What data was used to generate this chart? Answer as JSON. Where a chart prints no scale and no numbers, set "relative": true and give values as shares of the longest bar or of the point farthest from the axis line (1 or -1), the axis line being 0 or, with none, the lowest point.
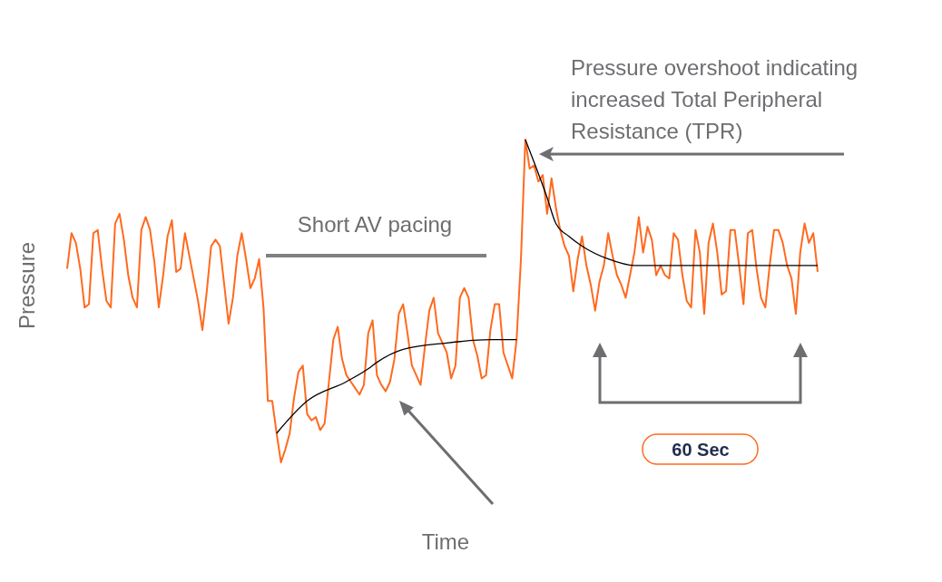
{
  "chart_data": {
    "type": "line",
    "relative": true,
    "xlabel": "Time",
    "ylabel": "Pressure",
    "grid": false,
    "marker": "none",
    "line_style": "solid",
    "annotations": [
      "Pressure overshoot indicating increased Total Peripheral Resistance (TPR)",
      "Short AV pacing",
      "60 Sec"
    ],
    "categories": [
      null,
      null,
      null,
      null,
      null,
      null,
      null,
      null,
      null,
      null,
      null,
      null,
      null,
      null,
      null,
      null,
      null,
      null,
      null,
      null,
      null,
      null,
      null,
      null,
      null,
      null,
      null,
      null,
      null,
      null,
      null,
      null,
      null,
      null,
      null,
      null,
      null,
      null,
      null,
      null,
      null,
      null,
      null,
      null,
      null,
      null,
      null,
      null,
      null,
      null,
      null,
      null,
      null,
      null,
      null,
      null,
      null,
      null,
      null,
      null,
      null,
      null,
      null,
      null,
      null,
      null,
      null,
      null,
      null,
      null,
      null,
      null,
      null,
      null,
      null,
      null,
      null,
      null,
      null,
      null,
      null,
      null,
      null,
      null,
      null,
      null,
      null,
      null,
      null,
      null,
      null,
      null,
      null,
      null,
      null,
      null,
      null,
      null,
      null,
      null,
      null,
      null,
      null,
      null,
      null,
      null,
      null,
      null,
      null,
      null,
      null,
      null,
      null,
      null,
      null,
      null,
      null,
      null,
      null,
      null,
      null,
      null,
      null,
      null,
      null,
      null,
      null,
      null,
      null,
      null,
      null,
      null,
      null,
      null,
      null,
      null,
      null,
      null,
      null,
      null,
      null,
      null,
      null,
      null,
      null,
      null,
      null,
      null,
      null,
      null,
      null,
      null,
      null,
      null,
      null,
      null,
      null,
      null,
      null,
      null,
      null,
      null,
      null,
      null,
      null,
      null,
      null,
      null,
      null,
      null,
      null,
      null,
      null
    ],
    "series": [
      {
        "color": "#ff6a1f",
        "values": [
          0.6,
          0.71,
          0.68,
          0.6,
          0.48,
          0.49,
          0.71,
          0.72,
          0.6,
          0.5,
          0.48,
          0.74,
          0.77,
          0.69,
          0.58,
          0.51,
          0.48,
          0.72,
          0.76,
          0.72,
          0.62,
          0.48,
          0.58,
          0.7,
          0.75,
          0.59,
          0.6,
          0.71,
          0.64,
          0.57,
          0.5,
          0.41,
          0.53,
          0.67,
          0.69,
          0.67,
          0.55,
          0.43,
          0.51,
          0.64,
          0.71,
          0.63,
          0.54,
          0.57,
          0.63,
          0.48,
          0.19,
          0.19,
          0.09,
          0,
          0.04,
          0.09,
          0.2,
          0.28,
          0.3,
          0.15,
          0.13,
          0.14,
          0.1,
          0.12,
          0.25,
          0.38,
          0.42,
          0.32,
          0.27,
          0.25,
          0.23,
          0.21,
          0.24,
          0.4,
          0.44,
          0.27,
          0.24,
          0.22,
          0.25,
          0.32,
          0.46,
          0.49,
          0.4,
          0.3,
          0.27,
          0.24,
          0.36,
          0.47,
          0.51,
          0.4,
          0.37,
          0.34,
          0.26,
          0.3,
          0.51,
          0.54,
          0.51,
          0.38,
          0.33,
          0.26,
          0.27,
          0.41,
          0.49,
          0.49,
          0.34,
          0.3,
          0.26,
          0.38,
          0.63,
          1,
          0.91,
          0.92,
          0.87,
          0.89,
          0.77,
          0.88,
          0.79,
          0.72,
          0.67,
          0.64,
          0.53,
          0.63,
          0.7,
          0.61,
          0.55,
          0.47,
          0.56,
          0.61,
          0.71,
          0.64,
          0.58,
          0.55,
          0.51,
          0.58,
          0.65,
          0.76,
          0.65,
          0.73,
          0.69,
          0.58,
          0.61,
          0.58,
          0.57,
          0.71,
          0.69,
          0.58,
          0.5,
          0.48,
          0.72,
          0.65,
          0.46,
          0.68,
          0.74,
          0.65,
          0.52,
          0.53,
          0.72,
          0.72,
          0.61,
          0.49,
          0.71,
          0.72,
          0.6,
          0.51,
          0.48,
          0.61,
          0.72,
          0.72,
          0.68,
          0.61,
          0.57,
          0.46,
          0.65,
          0.74,
          0.68,
          0.71,
          0.59
        ]
      },
      {
        "color": "#000000",
        "values": [
          null,
          null,
          null,
          null,
          null,
          null,
          null,
          null,
          null,
          null,
          null,
          null,
          null,
          null,
          null,
          null,
          null,
          null,
          null,
          null,
          null,
          null,
          null,
          null,
          null,
          null,
          null,
          null,
          null,
          null,
          null,
          null,
          null,
          null,
          null,
          null,
          null,
          null,
          null,
          null,
          null,
          null,
          null,
          null,
          null,
          null,
          null,
          null,
          0.09,
          null,
          null,
          null,
          null,
          null,
          null,
          0.19,
          null,
          null,
          null,
          null,
          null,
          null,
          null,
          null,
          0.25,
          null,
          null,
          null,
          null,
          0.29,
          null,
          0.31,
          null,
          null,
          null,
          null,
          null,
          0.35,
          null,
          null,
          null,
          null,
          null,
          null,
          null,
          null,
          null,
          0.37,
          null,
          null,
          null,
          null,
          null,
          null,
          null,
          null,
          null,
          0.38,
          null,
          null,
          null,
          null,
          null,
          0.38,
          null,
          null,
          null,
          null,
          null,
          null,
          null,
          null,
          null,
          null,
          null,
          null,
          null,
          null,
          null,
          null,
          null,
          null,
          null,
          null,
          null,
          null,
          null,
          null,
          null,
          null,
          null,
          null,
          null,
          null,
          null,
          null,
          null,
          null,
          null,
          null,
          null,
          null,
          null,
          null,
          null,
          null,
          null,
          null,
          null,
          null,
          null,
          null,
          null,
          null,
          null,
          null,
          null,
          null,
          null,
          null,
          null,
          null,
          null,
          null,
          null,
          null,
          null,
          null,
          null,
          null,
          null,
          null,
          null
        ]
      },
      {
        "color": "#000000",
        "values": [
          null,
          null,
          null,
          null,
          null,
          null,
          null,
          null,
          null,
          null,
          null,
          null,
          null,
          null,
          null,
          null,
          null,
          null,
          null,
          null,
          null,
          null,
          null,
          null,
          null,
          null,
          null,
          null,
          null,
          null,
          null,
          null,
          null,
          null,
          null,
          null,
          null,
          null,
          null,
          null,
          null,
          null,
          null,
          null,
          null,
          null,
          null,
          null,
          null,
          null,
          null,
          null,
          null,
          null,
          null,
          null,
          null,
          null,
          null,
          null,
          null,
          null,
          null,
          null,
          null,
          null,
          null,
          null,
          null,
          null,
          null,
          null,
          null,
          null,
          null,
          null,
          null,
          null,
          null,
          null,
          null,
          null,
          null,
          null,
          null,
          null,
          null,
          null,
          null,
          null,
          null,
          null,
          null,
          null,
          null,
          null,
          null,
          null,
          null,
          null,
          null,
          null,
          null,
          null,
          null,
          1,
          null,
          null,
          null,
          null,
          0.82,
          null,
          0.74,
          null,
          null,
          0.7,
          null,
          null,
          0.67,
          null,
          null,
          null,
          null,
          null,
          0.63,
          null,
          null,
          null,
          null,
          null,
          0.61,
          null,
          null,
          null,
          null,
          null,
          null,
          null,
          null,
          null,
          null,
          null,
          null,
          null,
          null,
          null,
          null,
          null,
          null,
          null,
          null,
          null,
          null,
          null,
          null,
          null,
          null,
          null,
          null,
          null,
          null,
          null,
          null,
          null,
          null,
          null,
          null,
          null,
          null,
          null,
          null,
          null,
          0.61
        ]
      }
    ]
  }
}
